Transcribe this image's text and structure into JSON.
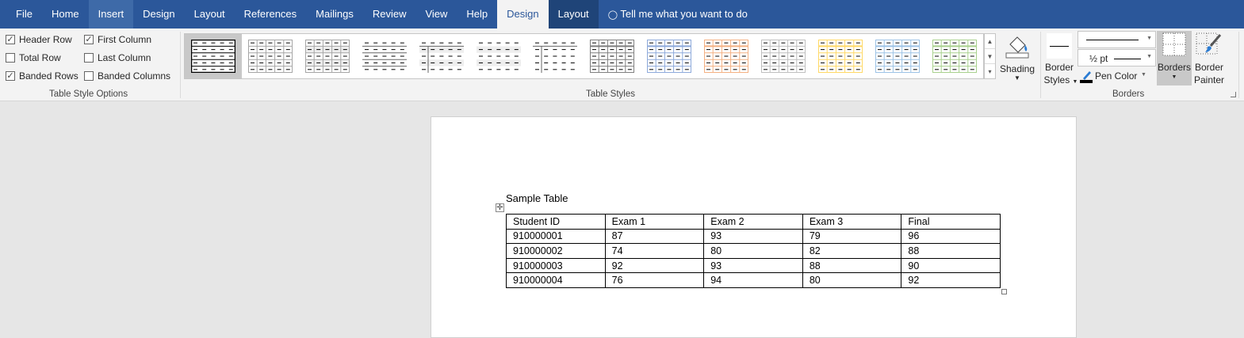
{
  "tabs": [
    "File",
    "Home",
    "Insert",
    "Design",
    "Layout",
    "References",
    "Mailings",
    "Review",
    "View",
    "Help",
    "Design",
    "Layout"
  ],
  "tell_me": "Tell me what you want to do",
  "style_options": {
    "label": "Table Style Options",
    "items": [
      {
        "label": "Header Row",
        "checked": true
      },
      {
        "label": "Total Row",
        "checked": false
      },
      {
        "label": "Banded Rows",
        "checked": true
      },
      {
        "label": "First Column",
        "checked": true
      },
      {
        "label": "Last Column",
        "checked": false
      },
      {
        "label": "Banded Columns",
        "checked": false
      }
    ]
  },
  "table_styles": {
    "label": "Table Styles",
    "accents": [
      "#000000",
      "#a6a6a6",
      "#a6a6a6",
      "#595959",
      "#7f7f7f",
      "#7f7f7f",
      "#7f7f7f",
      "#7f7f7f",
      "#8eaadb",
      "#f4b183",
      "#bfbfbf",
      "#ffd966",
      "#9dc3e6",
      "#a9d18e"
    ]
  },
  "shading": {
    "label": "Shading"
  },
  "borders": {
    "label": "Borders",
    "border_styles": [
      "Border",
      "Styles"
    ],
    "weight": "½ pt",
    "pen_color": "Pen Color",
    "borders_btn": "Borders",
    "border_painter": [
      "Border",
      "Painter"
    ]
  },
  "document": {
    "title": "Sample Table",
    "rows": [
      [
        "Student ID",
        "Exam 1",
        "Exam 2",
        "Exam 3",
        "Final"
      ],
      [
        "910000001",
        "87",
        "93",
        "79",
        "96"
      ],
      [
        "910000002",
        "74",
        "80",
        "82",
        "88"
      ],
      [
        "910000003",
        "92",
        "93",
        "88",
        "90"
      ],
      [
        "910000004",
        "76",
        "94",
        "80",
        "92"
      ]
    ]
  }
}
